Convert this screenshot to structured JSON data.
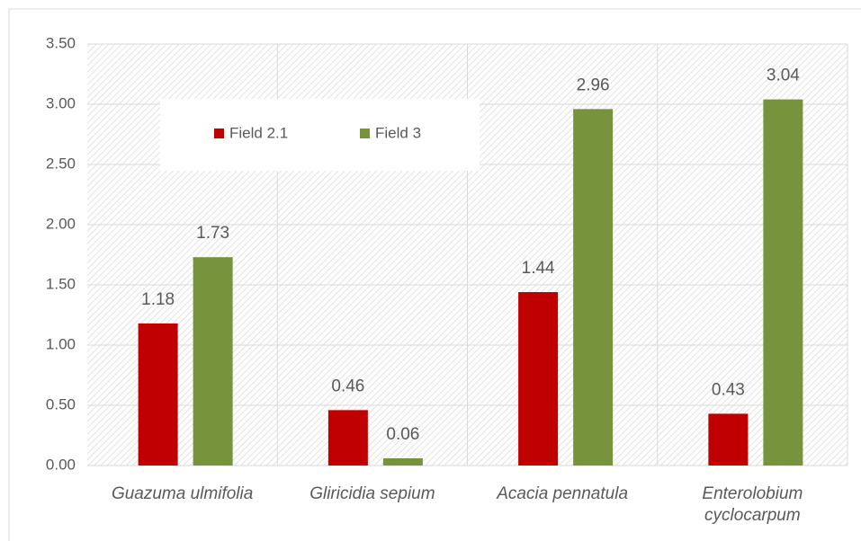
{
  "chart_data": {
    "type": "bar",
    "categories": [
      "Guazuma ulmifolia",
      "Gliricidia sepium",
      "Acacia pennatula",
      "Enterolobium cyclocarpum"
    ],
    "series": [
      {
        "name": "Field 2.1",
        "color": "#c00000",
        "values": [
          1.18,
          0.46,
          1.44,
          0.43
        ]
      },
      {
        "name": "Field 3",
        "color": "#77933c",
        "values": [
          1.73,
          0.06,
          2.96,
          3.04
        ]
      }
    ],
    "ylim": [
      0,
      3.5
    ],
    "yticks": [
      {
        "value": 0,
        "label": "0.00"
      },
      {
        "value": 0.5,
        "label": "0.50"
      },
      {
        "value": 1,
        "label": "1.00"
      },
      {
        "value": 1.5,
        "label": "1.50"
      },
      {
        "value": 2,
        "label": "2.00"
      },
      {
        "value": 2.5,
        "label": "2.50"
      },
      {
        "value": 3,
        "label": "3.00"
      },
      {
        "value": 3.5,
        "label": "3.50"
      }
    ],
    "grid": true
  }
}
